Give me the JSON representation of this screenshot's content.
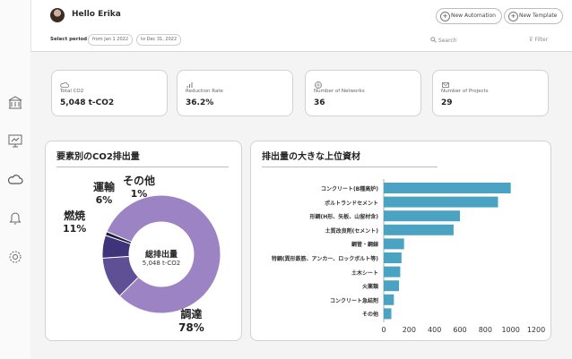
{
  "header": {
    "greeting": "Hello Erika",
    "new_automation_label": "New Automation",
    "new_template_label": "New Template",
    "period_label": "Select period",
    "date_from": "from Jan 1 2022",
    "date_to": "to Dec 31, 2022",
    "search_placeholder": "Search",
    "filter_label": "Filter"
  },
  "sidebar": {
    "items": [
      {
        "icon": "building-icon"
      },
      {
        "icon": "presentation-icon"
      },
      {
        "icon": "cloud-icon"
      },
      {
        "icon": "bell-icon"
      },
      {
        "icon": "settings-icon"
      }
    ]
  },
  "kpis": [
    {
      "icon": "cloud-icon",
      "label": "Total CO2",
      "value": "5,048 t-CO2"
    },
    {
      "icon": "bar-chart-icon",
      "label": "Reduction Rate",
      "value": "36.2%"
    },
    {
      "icon": "network-icon",
      "label": "Number of Networks",
      "value": "36"
    },
    {
      "icon": "mail-icon",
      "label": "Number of Projects",
      "value": "29"
    }
  ],
  "donut_panel": {
    "title": "要素別のCO2排出量",
    "center_title": "総排出量",
    "center_sub": "5,048 t-CO2"
  },
  "bar_panel": {
    "title": "排出量の大きな上位資材"
  },
  "chart_data": [
    {
      "type": "pie",
      "title": "要素別のCO2排出量",
      "slices": [
        {
          "name": "調達",
          "percent_label": "78%",
          "value": 78,
          "color": "#9b83c4"
        },
        {
          "name": "燃焼",
          "percent_label": "11%",
          "value": 11,
          "color": "#5f4f95"
        },
        {
          "name": "運輸",
          "percent_label": "6%",
          "value": 6,
          "color": "#3f3479"
        },
        {
          "name": "その他",
          "percent_label": "1%",
          "value": 1,
          "color": "#1f1d3c"
        }
      ]
    },
    {
      "type": "bar",
      "orientation": "horizontal",
      "title": "排出量の大きな上位資材",
      "categories": [
        "コンクリート(B種高炉)",
        "ポルトランドセメント",
        "形鋼(H形、矢板、山留材含)",
        "土質改良剤(セメント)",
        "鋼管・鋼線",
        "特鋼(異形鉄筋、アンカー、ロックボルト等)",
        "土木シート",
        "火薬類",
        "コンクリート急結剤",
        "その他"
      ],
      "values": [
        1000,
        900,
        600,
        550,
        160,
        140,
        130,
        120,
        80,
        60
      ],
      "xticks": [
        "0",
        "200",
        "400",
        "600",
        "800",
        "1000",
        "1200"
      ],
      "xlim": [
        0,
        1200
      ],
      "color": "#4aa3c2"
    }
  ]
}
